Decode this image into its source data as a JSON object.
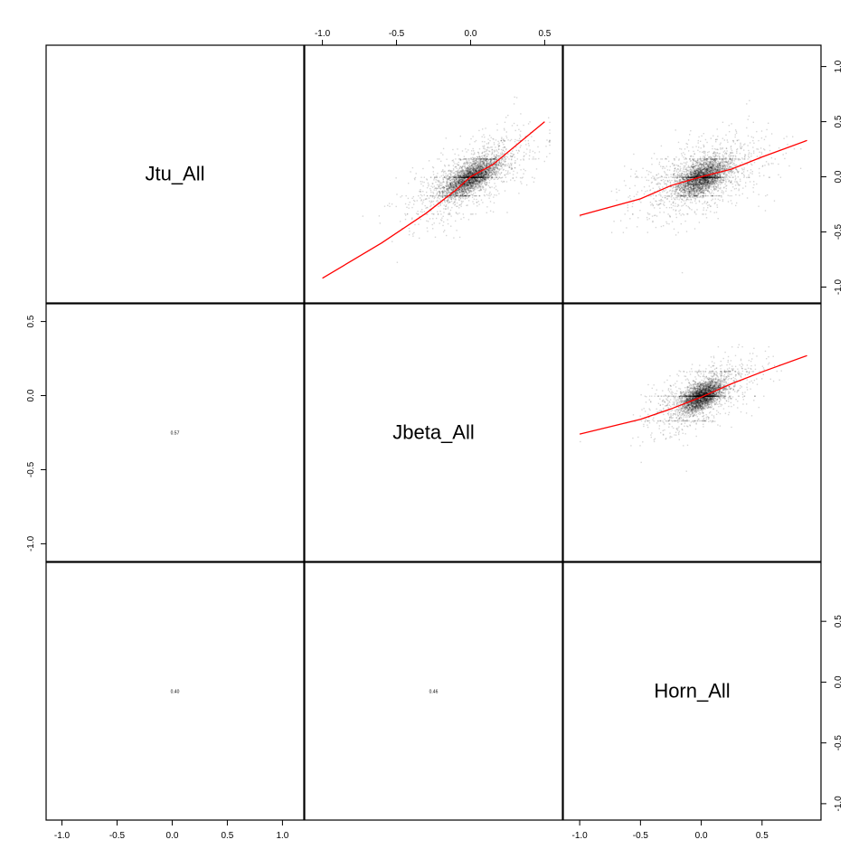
{
  "chart_data": {
    "type": "scatter",
    "layout": "scatterplot-matrix",
    "variables": [
      "Jtu_All",
      "Jbeta_All",
      "Horn_All"
    ],
    "diagonal_labels": [
      "Jtu_All",
      "Jbeta_All",
      "Horn_All"
    ],
    "lower_correlations": [
      {
        "row": 1,
        "col": 0,
        "text": "0.57"
      },
      {
        "row": 2,
        "col": 0,
        "text": "0.40"
      },
      {
        "row": 2,
        "col": 1,
        "text": "0.46"
      }
    ],
    "axes": {
      "top_col1": {
        "range": [
          -1.05,
          0.55
        ],
        "ticks": [
          -1.0,
          -0.5,
          0.0,
          0.5
        ],
        "tick_labels": [
          "-1.0",
          "-0.5",
          "0.0",
          "0.5"
        ]
      },
      "right_row0": {
        "range": [
          -1.05,
          1.1
        ],
        "ticks": [
          1.0,
          0.5,
          0.0,
          -0.5,
          -1.0
        ],
        "tick_labels": [
          "1.0",
          "0.5",
          "0.0",
          "-0.5",
          "-1.0"
        ]
      },
      "left_row1": {
        "range": [
          -1.05,
          0.55
        ],
        "ticks": [
          0.5,
          0.0,
          -0.5,
          -1.0
        ],
        "tick_labels": [
          "0.5",
          "0.0",
          "-0.5",
          "-1.0"
        ]
      },
      "right_row2": {
        "range": [
          -1.05,
          0.9
        ],
        "ticks": [
          0.5,
          0.0,
          -0.5,
          -1.0
        ],
        "tick_labels": [
          "0.5",
          "0.0",
          "-0.5",
          "-1.0"
        ]
      },
      "bottom_col0": {
        "range": [
          -1.05,
          1.1
        ],
        "ticks": [
          -1.0,
          -0.5,
          0.0,
          0.5,
          1.0
        ],
        "tick_labels": [
          "-1.0",
          "-0.5",
          "0.0",
          "0.5",
          "1.0"
        ]
      },
      "bottom_col2": {
        "range": [
          -1.05,
          0.9
        ],
        "ticks": [
          -1.0,
          -0.5,
          0.0,
          0.5
        ],
        "tick_labels": [
          "-1.0",
          "-0.5",
          "0.0",
          "0.5"
        ]
      }
    },
    "upper_panels": [
      {
        "id": "jbeta-vs-jtu",
        "row": 0,
        "col": 1,
        "x_variable": "Jbeta_All",
        "y_variable": "Jtu_All",
        "xlim": [
          -1.05,
          0.55
        ],
        "ylim": [
          -1.05,
          1.1
        ],
        "fit_line": {
          "color": "#ff0000",
          "x": [
            -1.0,
            -0.6,
            -0.3,
            -0.1,
            0.0,
            0.15,
            0.5
          ],
          "y": [
            -0.92,
            -0.6,
            -0.33,
            -0.12,
            0.0,
            0.11,
            0.5
          ]
        },
        "cloud": {
          "center": [
            0.0,
            0.0
          ],
          "sd": [
            0.09,
            0.1
          ],
          "tail_sd": [
            0.22,
            0.26
          ],
          "n": 3800
        }
      },
      {
        "id": "horn-vs-jtu",
        "row": 0,
        "col": 2,
        "x_variable": "Horn_All",
        "y_variable": "Jtu_All",
        "xlim": [
          -1.05,
          0.9
        ],
        "ylim": [
          -1.05,
          1.1
        ],
        "fit_line": {
          "color": "#ff0000",
          "x": [
            -1.0,
            -0.5,
            -0.25,
            0.0,
            0.25,
            0.5,
            0.87
          ],
          "y": [
            -0.35,
            -0.2,
            -0.08,
            0.0,
            0.07,
            0.18,
            0.33
          ]
        },
        "cloud": {
          "center": [
            0.0,
            0.0
          ],
          "sd": [
            0.1,
            0.11
          ],
          "tail_sd": [
            0.28,
            0.28
          ],
          "n": 3800
        }
      },
      {
        "id": "horn-vs-jbeta",
        "row": 1,
        "col": 2,
        "x_variable": "Horn_All",
        "y_variable": "Jbeta_All",
        "xlim": [
          -1.05,
          0.9
        ],
        "ylim": [
          -1.05,
          0.55
        ],
        "fit_line": {
          "color": "#ff0000",
          "x": [
            -1.0,
            -0.5,
            -0.25,
            0.0,
            0.25,
            0.5,
            0.87
          ],
          "y": [
            -0.26,
            -0.16,
            -0.09,
            -0.01,
            0.08,
            0.16,
            0.27
          ]
        },
        "cloud": {
          "center": [
            0.0,
            0.0
          ],
          "sd": [
            0.08,
            0.07
          ],
          "tail_sd": [
            0.22,
            0.16
          ],
          "n": 3800
        }
      }
    ],
    "point_color": "#000000",
    "grid": false,
    "legend": "none"
  }
}
